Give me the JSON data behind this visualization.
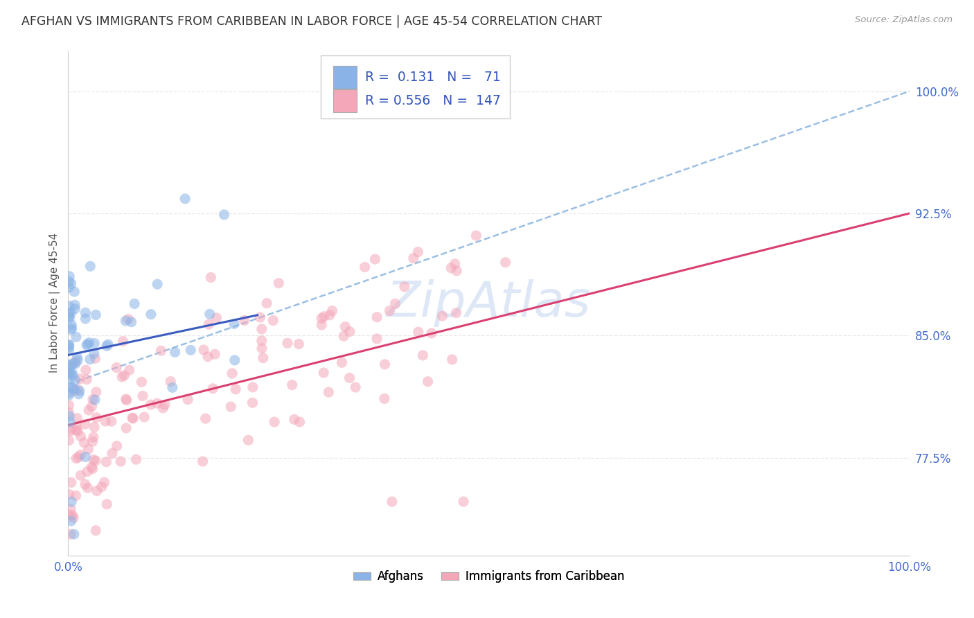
{
  "title": "AFGHAN VS IMMIGRANTS FROM CARIBBEAN IN LABOR FORCE | AGE 45-54 CORRELATION CHART",
  "source": "Source: ZipAtlas.com",
  "ylabel": "In Labor Force | Age 45-54",
  "xlim": [
    0.0,
    1.0
  ],
  "ylim": [
    0.715,
    1.025
  ],
  "yticks": [
    0.775,
    0.85,
    0.925,
    1.0
  ],
  "ytick_labels": [
    "77.5%",
    "85.0%",
    "92.5%",
    "100.0%"
  ],
  "xtick_labels": [
    "0.0%",
    "100.0%"
  ],
  "legend_labels": [
    "Afghans",
    "Immigrants from Caribbean"
  ],
  "R_afghan": 0.131,
  "N_afghan": 71,
  "R_carib": 0.556,
  "N_carib": 147,
  "color_afghan": "#8ab4e8",
  "color_carib": "#f4a7b9",
  "trendline_afghan_color": "#3a5bbf",
  "trendline_carib_color": "#d94070",
  "trendline_dashed_color": "#90b8e0",
  "watermark": "ZipAtlas",
  "watermark_color": "#c8d8f0",
  "background_color": "#ffffff",
  "grid_color": "#e8e8e8",
  "scatter_size": 120,
  "scatter_alpha": 0.55
}
